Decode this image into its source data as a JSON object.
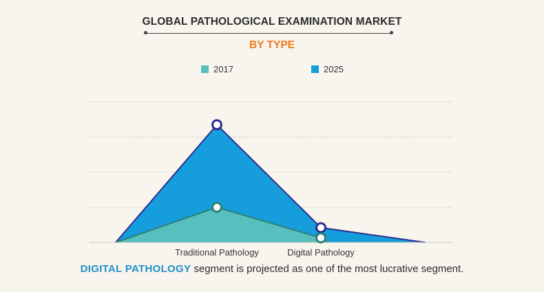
{
  "chart_data": {
    "type": "area",
    "title": "GLOBAL PATHOLOGICAL EXAMINATION MARKET",
    "subtitle": "BY TYPE",
    "categories": [
      "Traditional Pathology",
      "Digital Pathology"
    ],
    "series": [
      {
        "name": "2017",
        "values": [
          1.0,
          0.13
        ]
      },
      {
        "name": "2025",
        "values": [
          3.35,
          0.42
        ]
      }
    ],
    "ylim": [
      0,
      4
    ],
    "grid": true,
    "legend_position": "top-center",
    "colors": {
      "series_2017": "#57bfbd",
      "series_2025": "#159ddc",
      "outline_2017": "#2f7f74",
      "outline_2025": "#2e2d8f",
      "subtitle": "#ee7a1b",
      "highlight": "#1f8fc7"
    }
  },
  "footer": {
    "highlight": "DIGITAL PATHOLOGY",
    "text": " segment is projected as one of the most lucrative segment."
  }
}
